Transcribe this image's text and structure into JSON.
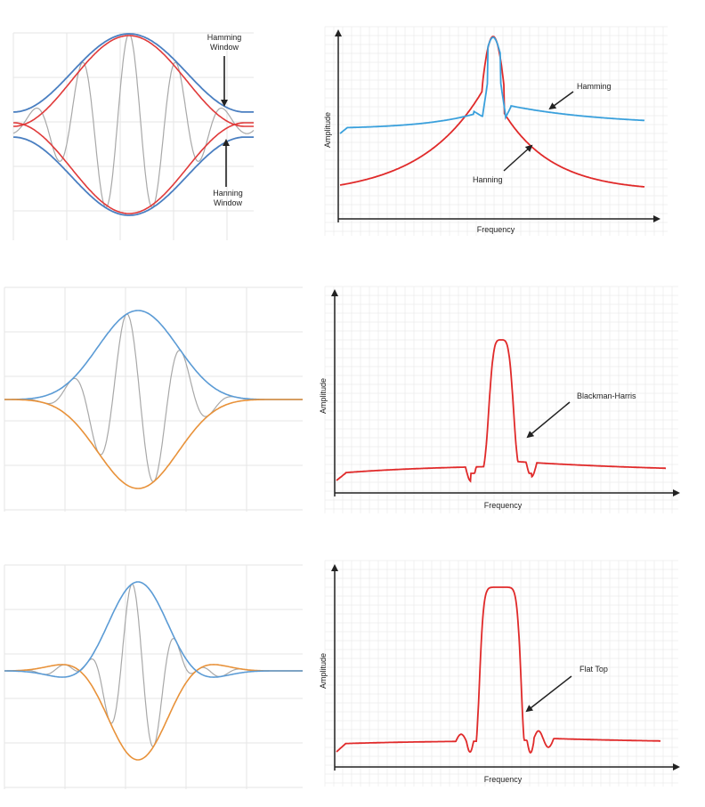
{
  "colors": {
    "grid": "#e6e6e6",
    "blue_env": "#4a7fc1",
    "red_env": "#e03a3a",
    "gray_wave": "#a8a8a8",
    "orange_env": "#e8923a",
    "hamming_curve": "#3aa0dc",
    "spectrum_red": "#e02a2a",
    "axis": "#222222"
  },
  "panels": {
    "p1_left": {
      "label_top": "Hamming Window",
      "label_bottom": "Hanning Window"
    },
    "p1_right": {
      "ylabel": "Amplitude",
      "xlabel": "Frequency",
      "callout_a": "Hamming",
      "callout_b": "Hanning"
    },
    "p2_right": {
      "ylabel": "Amplitude",
      "xlabel": "Frequency",
      "callout": "Blackman-Harris"
    },
    "p3_right": {
      "ylabel": "Amplitude",
      "xlabel": "Frequency",
      "callout": "Flat Top"
    }
  }
}
